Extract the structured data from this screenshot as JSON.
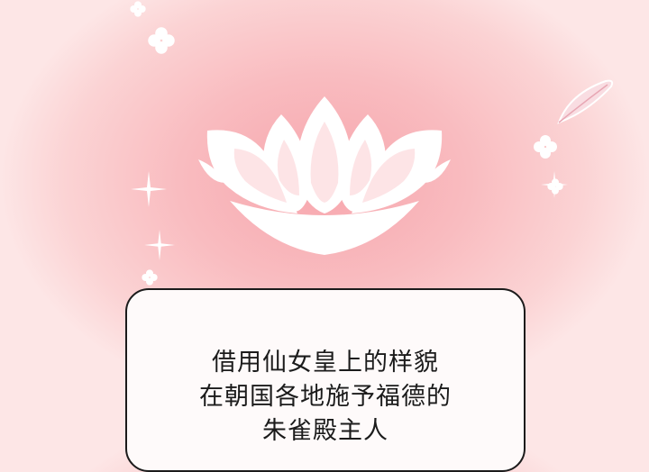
{
  "scene": {
    "background_center_color": "#f7a6ad",
    "background_edge_color": "#fde6e6",
    "decorations": [
      "lotus-icon",
      "sparkle-icon",
      "small-flower-icon",
      "feather-icon"
    ]
  },
  "speech_box": {
    "lines": [
      "借用仙女皇上的样貌",
      "在朝国各地施予福德的",
      "朱雀殿主人"
    ]
  }
}
